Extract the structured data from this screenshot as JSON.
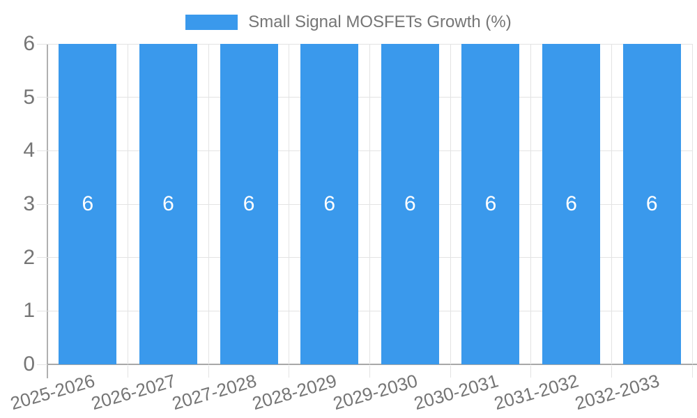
{
  "colors": {
    "bar": "#3a99ec",
    "text": "#757575",
    "grid_line": "#e3e3e3",
    "axis_line": "#b0b0b0",
    "baseline": "#a8a8a8",
    "bar_label": "#ffffff",
    "background": "#ffffff"
  },
  "legend": {
    "position": "top",
    "label": "Small Signal MOSFETs Growth (%)",
    "swatch_color": "#3a99ec"
  },
  "chart_data": {
    "type": "bar",
    "title": "Small Signal MOSFETs Growth (%)",
    "xlabel": "",
    "ylabel": "",
    "categories": [
      "2025-2026",
      "2026-2027",
      "2027-2028",
      "2028-2029",
      "2029-2030",
      "2030-2031",
      "2031-2032",
      "2032-2033"
    ],
    "series": [
      {
        "name": "Small Signal MOSFETs Growth (%)",
        "values": [
          6,
          6,
          6,
          6,
          6,
          6,
          6,
          6
        ]
      }
    ],
    "bar_value_labels": [
      "6",
      "6",
      "6",
      "6",
      "6",
      "6",
      "6",
      "6"
    ],
    "y_ticks": [
      0,
      1,
      2,
      3,
      4,
      5,
      6
    ],
    "ylim": [
      0,
      6
    ],
    "grid": true,
    "x_label_rotation_deg": -16,
    "legend_position": "top"
  }
}
